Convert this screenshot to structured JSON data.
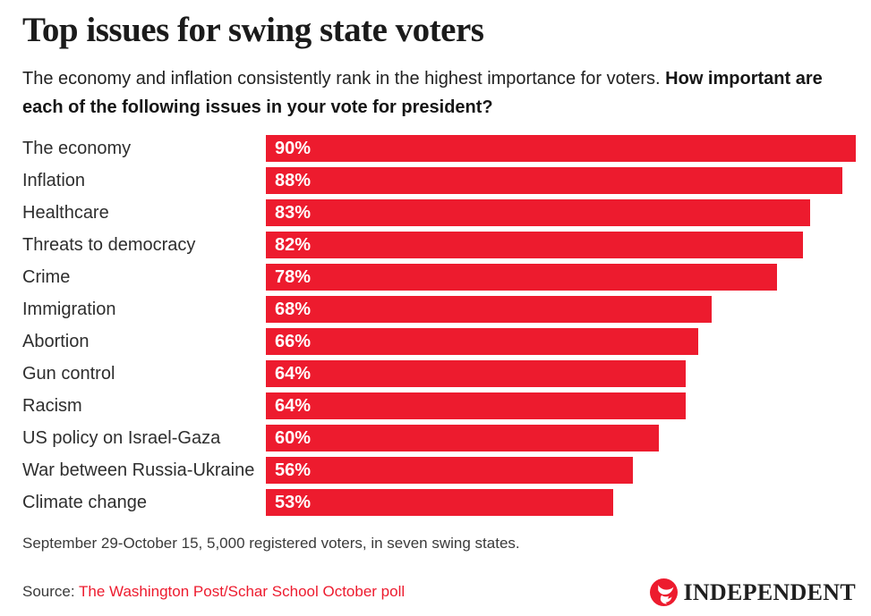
{
  "header": {
    "title": "Top issues for swing state voters",
    "subtitle_regular": "The economy and inflation consistently rank in the highest importance for voters. ",
    "subtitle_bold": "How important are each of the following issues in your vote for president?"
  },
  "chart_data": {
    "type": "bar",
    "orientation": "horizontal",
    "title": "Top issues for swing state voters",
    "categories": [
      "The economy",
      "Inflation",
      "Healthcare",
      "Threats to democracy",
      "Crime",
      "Immigration",
      "Abortion",
      "Gun control",
      "Racism",
      "US policy on Israel-Gaza",
      "War between Russia-Ukraine",
      "Climate change"
    ],
    "values": [
      90,
      88,
      83,
      82,
      78,
      68,
      66,
      64,
      64,
      60,
      56,
      53
    ],
    "value_labels": [
      "90%",
      "88%",
      "83%",
      "82%",
      "78%",
      "68%",
      "66%",
      "64%",
      "64%",
      "60%",
      "56%",
      "53%"
    ],
    "xlim": [
      0,
      90
    ],
    "max_value": 90,
    "bar_color": "#ED1B2E",
    "value_label_color": "#FFFFFF",
    "grid": false,
    "legend": false
  },
  "footer": {
    "note": "September 29-October 15, 5,000 registered voters, in seven swing states.",
    "source_label": "Source: ",
    "source_link_text": "The Washington Post/Schar School October poll",
    "source_link_color": "#ED1B2E",
    "logo_text": "INDEPENDENT",
    "logo_circle_color": "#ED1B2E"
  }
}
